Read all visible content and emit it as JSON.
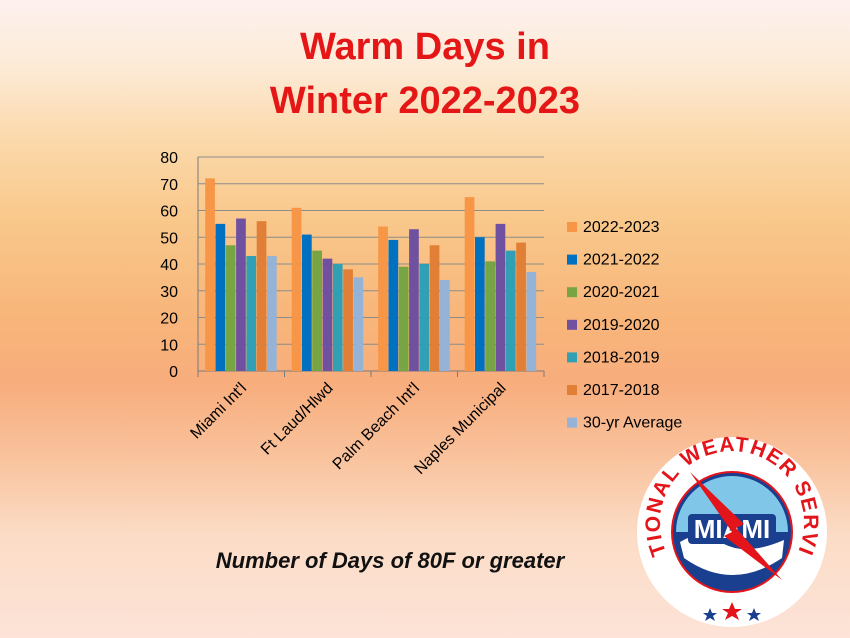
{
  "title": {
    "line1": "Warm Days in",
    "line2": "Winter 2022-2023"
  },
  "subtitle": "Number of Days of 80F or greater",
  "logo": {
    "ring_text": "NATIONAL WEATHER SERVICE",
    "center_text": "MIAMI"
  },
  "chart_data": {
    "type": "bar",
    "title": "",
    "xlabel": "",
    "ylabel": "",
    "ylim": [
      0,
      80
    ],
    "yticks": [
      0,
      10,
      20,
      30,
      40,
      50,
      60,
      70,
      80
    ],
    "grid": true,
    "legend_position": "right",
    "categories": [
      "Miami Int'l",
      "Ft Laud/Hlwd",
      "Palm Beach Int'l",
      "Naples Municipal"
    ],
    "series": [
      {
        "name": "2022-2023",
        "color": "#f79646",
        "values": [
          72,
          61,
          54,
          65
        ]
      },
      {
        "name": "2021-2022",
        "color": "#0070c0",
        "values": [
          55,
          51,
          49,
          50
        ]
      },
      {
        "name": "2020-2021",
        "color": "#77a543",
        "values": [
          47,
          45,
          39,
          41
        ]
      },
      {
        "name": "2019-2020",
        "color": "#7051a0",
        "values": [
          57,
          42,
          53,
          55
        ]
      },
      {
        "name": "2018-2019",
        "color": "#31a0b5",
        "values": [
          43,
          40,
          40,
          45
        ]
      },
      {
        "name": "2017-2018",
        "color": "#e07f35",
        "values": [
          56,
          38,
          47,
          48
        ]
      },
      {
        "name": "30-yr Average",
        "color": "#95b3d7",
        "values": [
          43,
          35,
          34,
          37
        ]
      }
    ]
  }
}
